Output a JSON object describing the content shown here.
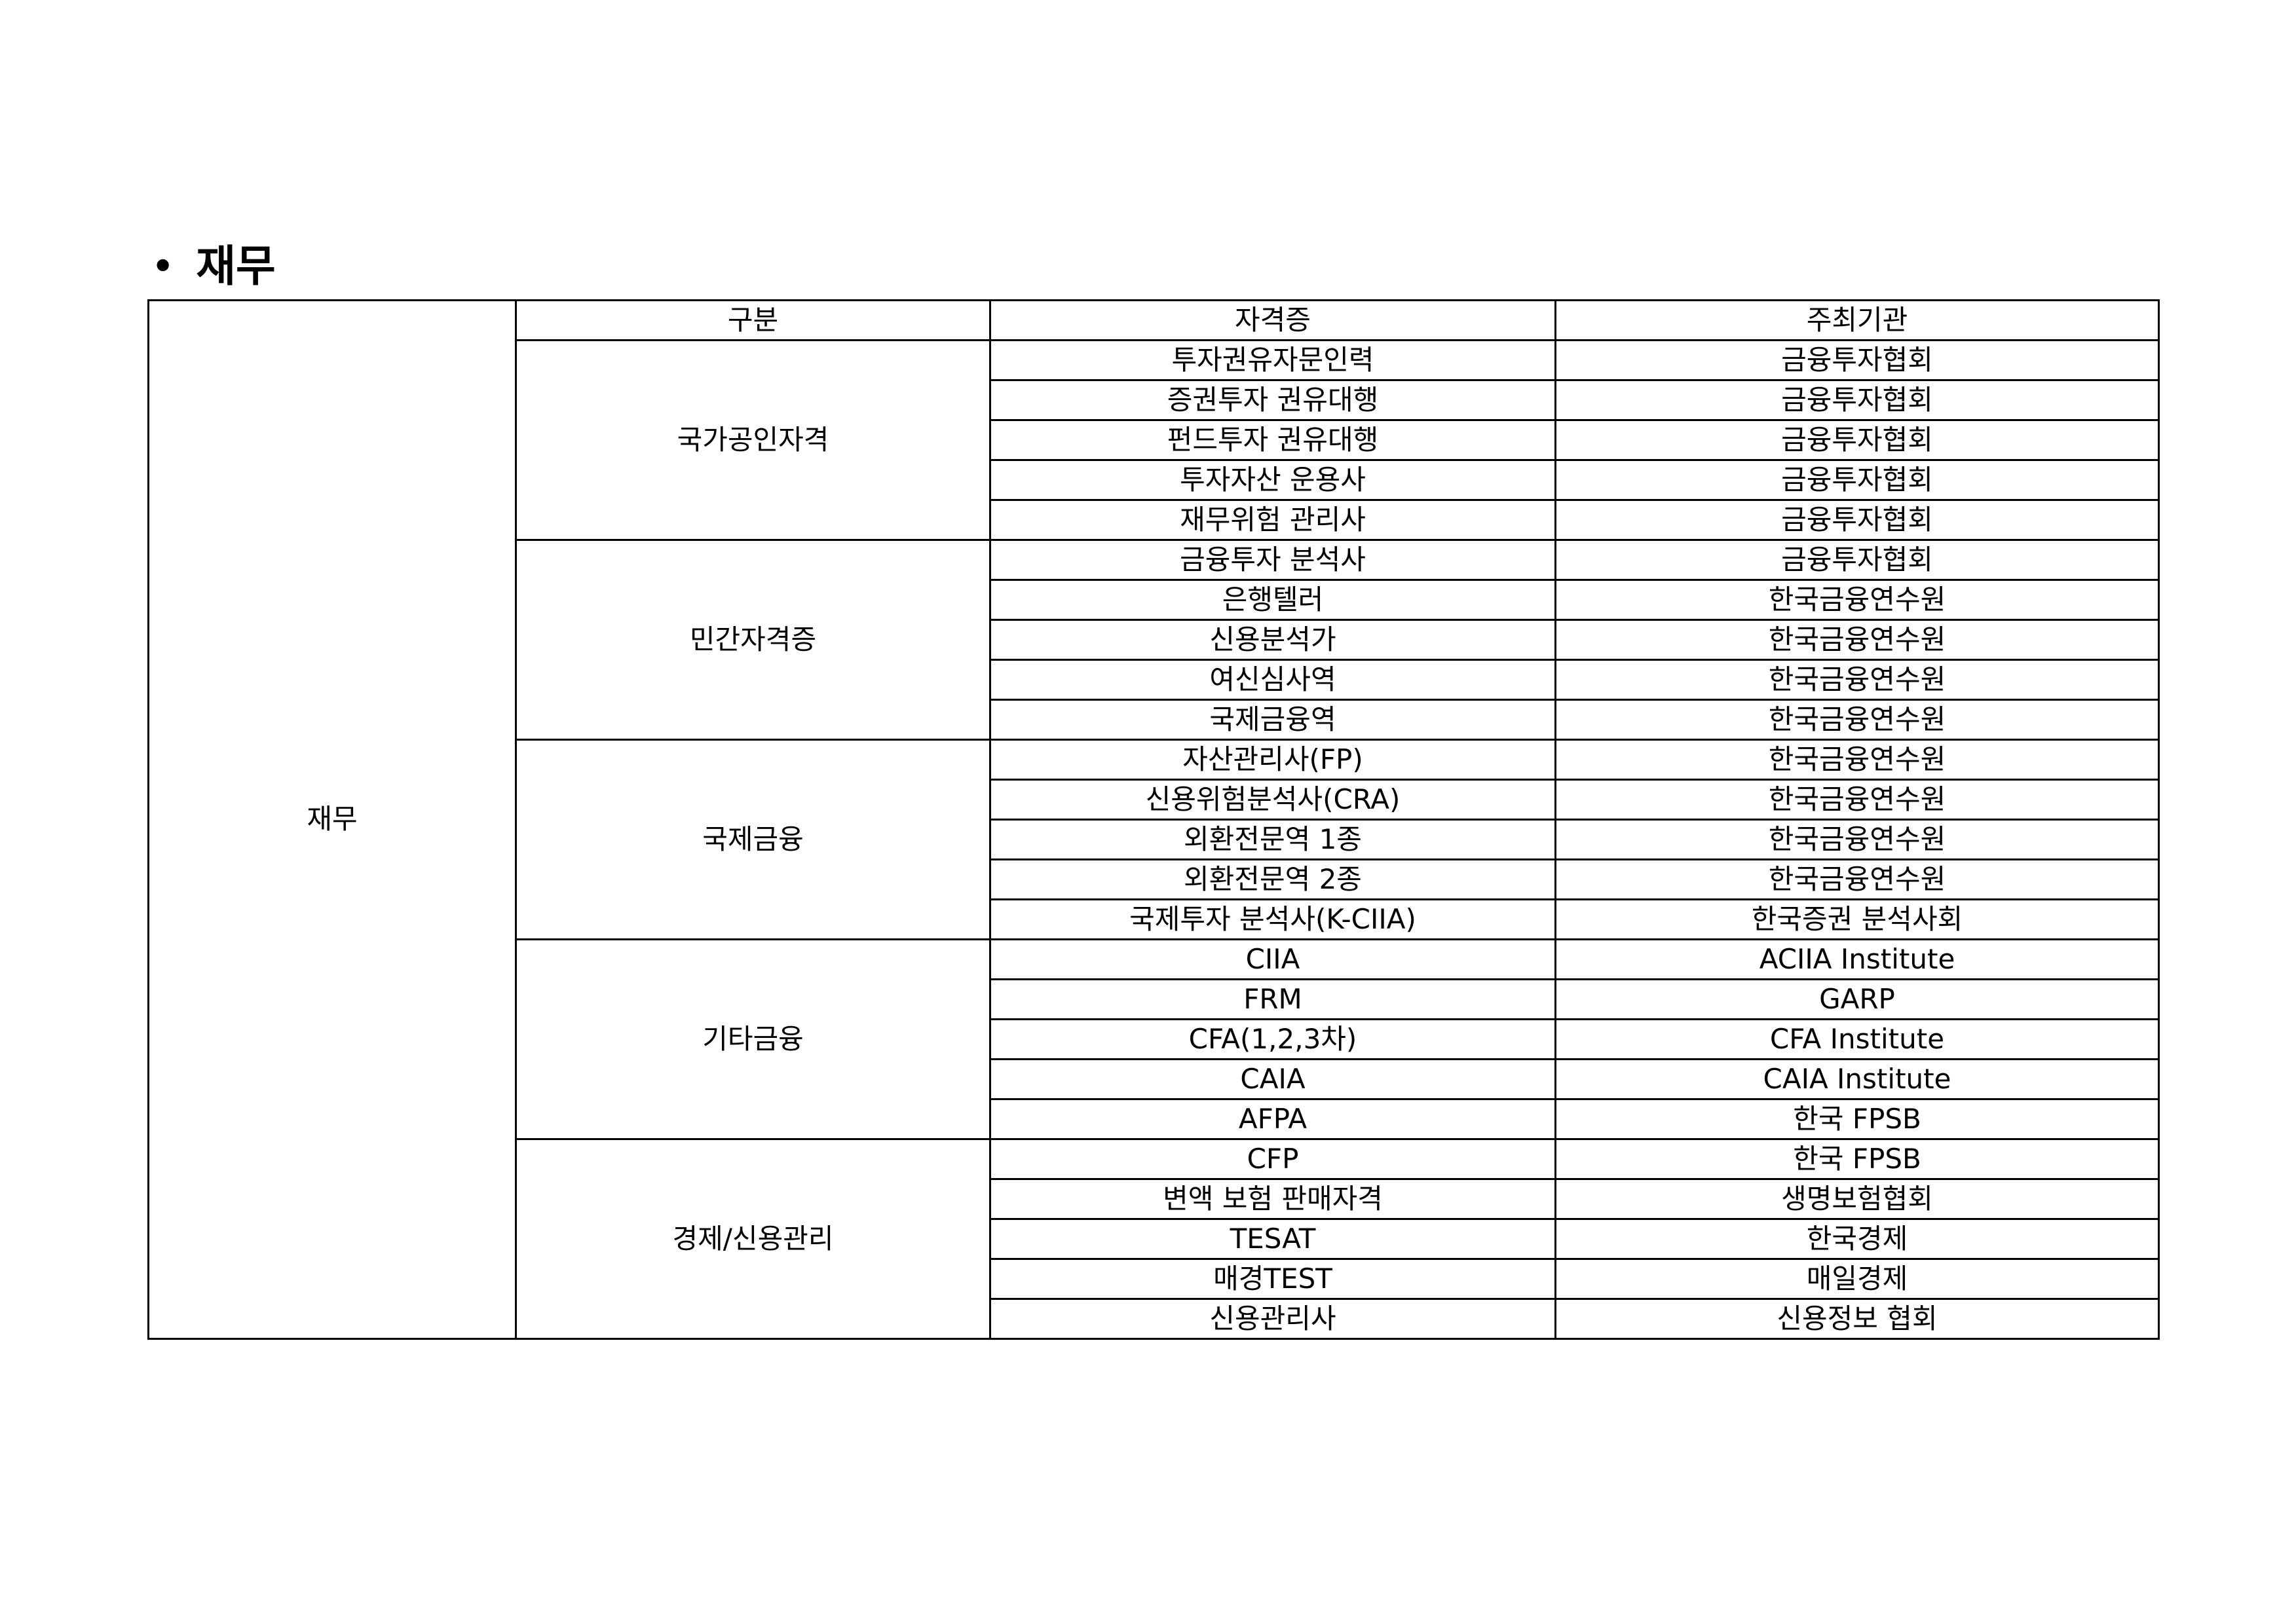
{
  "heading": {
    "bullet": "•",
    "title": "재무"
  },
  "table": {
    "domain_label": "재무",
    "headers": {
      "category": "구분",
      "certificate": "자격증",
      "organizer": "주최기관"
    },
    "groups": [
      {
        "category": "국가공인자격",
        "rows": [
          {
            "certificate": "투자권유자문인력",
            "organizer": "금융투자협회"
          },
          {
            "certificate": "증권투자 권유대행",
            "organizer": "금융투자협회"
          },
          {
            "certificate": "펀드투자 권유대행",
            "organizer": "금융투자협회"
          },
          {
            "certificate": "투자자산 운용사",
            "organizer": "금융투자협회"
          },
          {
            "certificate": "재무위험 관리사",
            "organizer": "금융투자협회"
          }
        ]
      },
      {
        "category": "민간자격증",
        "rows": [
          {
            "certificate": "금융투자 분석사",
            "organizer": "금융투자협회"
          },
          {
            "certificate": "은행텔러",
            "organizer": "한국금융연수원"
          },
          {
            "certificate": "신용분석가",
            "organizer": "한국금융연수원"
          },
          {
            "certificate": "여신심사역",
            "organizer": "한국금융연수원"
          },
          {
            "certificate": "국제금융역",
            "organizer": "한국금융연수원"
          }
        ]
      },
      {
        "category": "국제금융",
        "rows": [
          {
            "certificate": "자산관리사(FP)",
            "organizer": "한국금융연수원"
          },
          {
            "certificate": "신용위험분석사(CRA)",
            "organizer": "한국금융연수원"
          },
          {
            "certificate": "외환전문역 1종",
            "organizer": "한국금융연수원"
          },
          {
            "certificate": "외환전문역 2종",
            "organizer": "한국금융연수원"
          },
          {
            "certificate": "국제투자 분석사(K-CIIA)",
            "organizer": "한국증권 분석사회"
          }
        ]
      },
      {
        "category": "기타금융",
        "rows": [
          {
            "certificate": "CIIA",
            "organizer": "ACIIA Institute"
          },
          {
            "certificate": "FRM",
            "organizer": "GARP"
          },
          {
            "certificate": "CFA(1,2,3차)",
            "organizer": "CFA Institute"
          },
          {
            "certificate": "CAIA",
            "organizer": "CAIA Institute"
          },
          {
            "certificate": "AFPA",
            "organizer": "한국 FPSB"
          }
        ]
      },
      {
        "category": "경제/신용관리",
        "rows": [
          {
            "certificate": "CFP",
            "organizer": "한국 FPSB"
          },
          {
            "certificate": "변액 보험 판매자격",
            "organizer": "생명보험협회"
          },
          {
            "certificate": "TESAT",
            "organizer": "한국경제"
          },
          {
            "certificate": "매경TEST",
            "organizer": "매일경제"
          },
          {
            "certificate": "신용관리사",
            "organizer": "신용정보 협회"
          }
        ]
      }
    ]
  }
}
